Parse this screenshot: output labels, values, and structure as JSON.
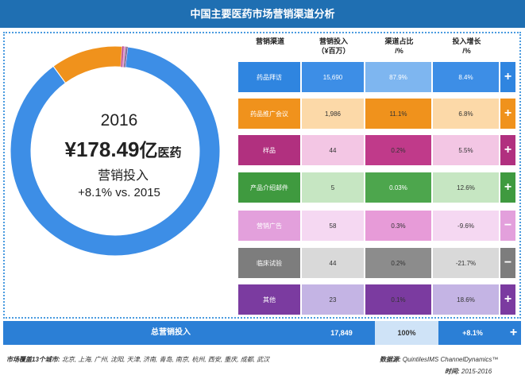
{
  "title": "中国主要医药市场营销渠道分析",
  "center": {
    "year": "2016",
    "amount": "¥178.49",
    "unit": "亿",
    "unit_suffix": "医药",
    "label": "营销投入",
    "growth": "+8.1% vs. 2015"
  },
  "table": {
    "headers": [
      "营销渠道",
      "营销投入\n（¥百万）",
      "渠道占比\n/%",
      "投入增长\n/%"
    ],
    "rows": [
      {
        "channel": "药品拜访",
        "investment": "15,690",
        "share": "87.9%",
        "growth": "8.4%",
        "sign": "+"
      },
      {
        "channel": "药品推广会议",
        "investment": "1,986",
        "share": "11.1%",
        "growth": "6.8%",
        "sign": "+"
      },
      {
        "channel": "样品",
        "investment": "44",
        "share": "0.2%",
        "growth": "5.5%",
        "sign": "+"
      },
      {
        "channel": "产品介绍邮件",
        "investment": "5",
        "share": "0.03%",
        "growth": "12.6%",
        "sign": "+"
      },
      {
        "channel": "营销广告",
        "investment": "58",
        "share": "0.3%",
        "growth": "-9.6%",
        "sign": "−"
      },
      {
        "channel": "临床试验",
        "investment": "44",
        "share": "0.2%",
        "growth": "-21.7%",
        "sign": "−"
      },
      {
        "channel": "其他",
        "investment": "23",
        "share": "0.1%",
        "growth": "18.6%",
        "sign": "+"
      }
    ]
  },
  "total": {
    "label": "总营销投入",
    "investment": "17,849",
    "share": "100%",
    "growth": "+8.1%",
    "sign": "+"
  },
  "footer": {
    "cities_label": "市场覆盖13个城市:",
    "cities": "北京, 上海, 广州, 沈阳, 天津, 济南, 青岛, 南京, 杭州, 西安, 重庆, 成都, 武汉",
    "source_label": "数据源:",
    "source": "QuintilesIMS ChannelDynamics™",
    "time_label": "时间:",
    "time": "2015-2016"
  },
  "chart_data": {
    "type": "pie",
    "style": "donut",
    "title": "2016 ¥178.49亿医药营销投入",
    "categories": [
      "药品拜访",
      "药品推广会议",
      "样品",
      "产品介绍邮件",
      "营销广告",
      "临床试验",
      "其他"
    ],
    "values": [
      87.9,
      11.1,
      0.2,
      0.03,
      0.3,
      0.2,
      0.1
    ],
    "colors": [
      "#3d8ee6",
      "#f0921c",
      "#c03a8a",
      "#3f9a3f",
      "#e79bd8",
      "#8c8c8c",
      "#7b3ba0"
    ]
  },
  "colors": {
    "rows": [
      {
        "label_bg": "#2f85e0",
        "cell_bg": "#3d8ee6",
        "mid_bg": "#7eb6f0",
        "text": "#ffffff"
      },
      {
        "label_bg": "#f0921c",
        "cell_bg": "#fcd9a8",
        "mid_bg": "#f0921c",
        "text": "#333333"
      },
      {
        "label_bg": "#b1307f",
        "cell_bg": "#f3c6e4",
        "mid_bg": "#c03a8a",
        "text": "#333333"
      },
      {
        "label_bg": "#3f9a3f",
        "cell_bg": "#c6e6c2",
        "mid_bg": "#4da64d",
        "text": "#333333"
      },
      {
        "label_bg": "#e3a0dc",
        "cell_bg": "#f5d8f2",
        "mid_bg": "#e79bd8",
        "text": "#333333"
      },
      {
        "label_bg": "#7d7d7d",
        "cell_bg": "#d9d9d9",
        "mid_bg": "#8c8c8c",
        "text": "#333333"
      },
      {
        "label_bg": "#7b3ba0",
        "cell_bg": "#c4b4e4",
        "mid_bg": "#7b3ba0",
        "text": "#333333"
      }
    ]
  }
}
